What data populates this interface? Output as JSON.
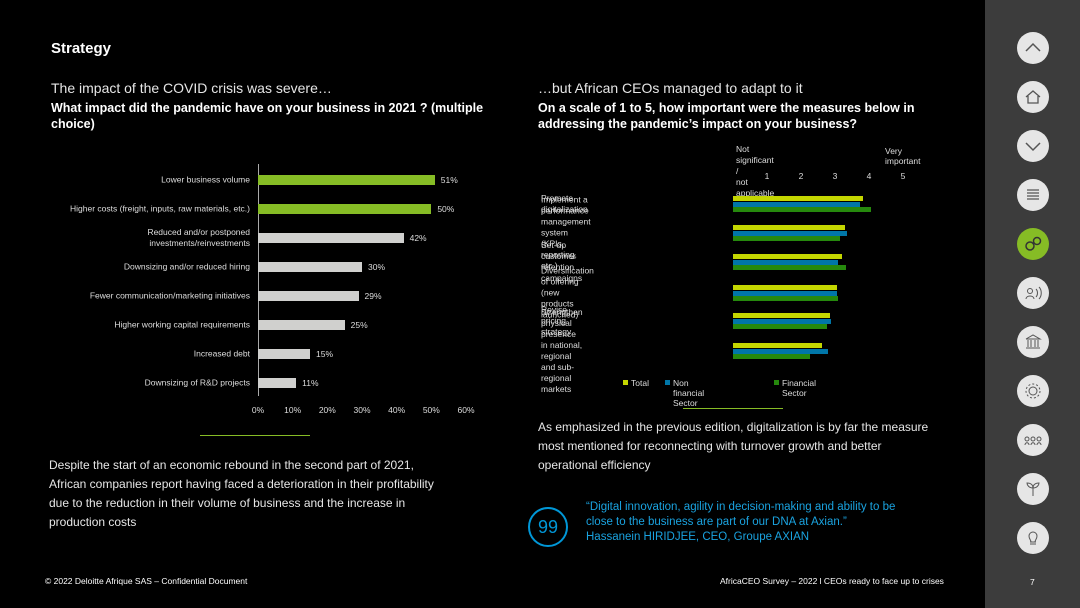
{
  "header": {
    "title": "Strategy"
  },
  "left": {
    "heading": "The impact of the COVID crisis was severe…",
    "question": "What impact did the pandemic have on your business in 2021 ? (multiple choice)",
    "body": "Despite the start of an economic rebound in the second part of 2021, African companies report having faced a deterioration in their profitability due to the reduction in their volume of business and the increase in production costs"
  },
  "right": {
    "heading": "…but African CEOs managed to adapt to it",
    "question": "On a scale of 1 to 5, how important were the measures below in addressing the pandemic’s impact on your business?",
    "body": "As emphasized in the previous edition, digitalization is by far the measure most mentioned for reconnecting with turnover growth and better operational efficiency",
    "quote_mark": "99",
    "quote": "“Digital innovation, agility in decision-making and ability to be close to the business are part of our DNA at Axian.”",
    "quote_author": "Hassanein HIRIDJEE, CEO, Groupe AXIAN"
  },
  "chart_data": [
    {
      "type": "hbar",
      "categories": [
        "Lower business volume",
        "Higher costs (freight, inputs, raw materials, etc.)",
        "Reduced and/or postponed\ninvestments/reinvestments",
        "Downsizing and/or reduced hiring",
        "Fewer communication/marketing initiatives",
        "Higher working capital requirements",
        "Increased debt",
        "Downsizing of R&D projects"
      ],
      "values": [
        51,
        50,
        42,
        30,
        29,
        25,
        15,
        11
      ],
      "value_labels": [
        "51%",
        "50%",
        "42%",
        "30%",
        "29%",
        "25%",
        "15%",
        "11%"
      ],
      "colors": [
        "#86bc25",
        "#86bc25",
        "#d0d0ce",
        "#d0d0ce",
        "#d0d0ce",
        "#d0d0ce",
        "#d0d0ce",
        "#d0d0ce"
      ],
      "xlim": [
        0,
        60
      ],
      "xticks": [
        {
          "value": 0,
          "label": "0%"
        },
        {
          "value": 10,
          "label": "10%"
        },
        {
          "value": 20,
          "label": "20%"
        },
        {
          "value": 30,
          "label": "30%"
        },
        {
          "value": 40,
          "label": "40%"
        },
        {
          "value": 50,
          "label": "50%"
        },
        {
          "value": 60,
          "label": "60%"
        }
      ]
    },
    {
      "type": "grouped-hbar",
      "annotations": [
        "Not significant /\nnot applicable",
        "Very important"
      ],
      "categories": [
        "Promote digitalization",
        "Implement a performance management\nsystem (KPIs, reporting, etc.)",
        "Set-up customer retention campaigns",
        "Diversification of offering (new products\nlaunched)",
        "Revise pricing strategy",
        "Strengthen physical presence in national,\nregional and sub-regional markets"
      ],
      "series": [
        {
          "name": "Total",
          "color": "#c4d600",
          "values": [
            3.82,
            3.29,
            3.21,
            3.06,
            2.85,
            2.62
          ]
        },
        {
          "name": "Non financial Sector",
          "color": "#0076a8",
          "values": [
            3.74,
            3.35,
            3.09,
            3.06,
            2.88,
            2.79
          ]
        },
        {
          "name": "Financial Sector",
          "color": "#26890d",
          "values": [
            4.06,
            3.15,
            3.32,
            3.09,
            2.76,
            2.26
          ]
        }
      ],
      "xlim": [
        0,
        5
      ],
      "xticks": [
        1,
        2,
        3,
        4,
        5
      ]
    }
  ],
  "footer": {
    "left": "© 2022 Deloitte Afrique SAS – Confidential Document",
    "right": "AfricaCEO Survey – 2022 l CEOs ready to face up to crises",
    "page": "7"
  }
}
